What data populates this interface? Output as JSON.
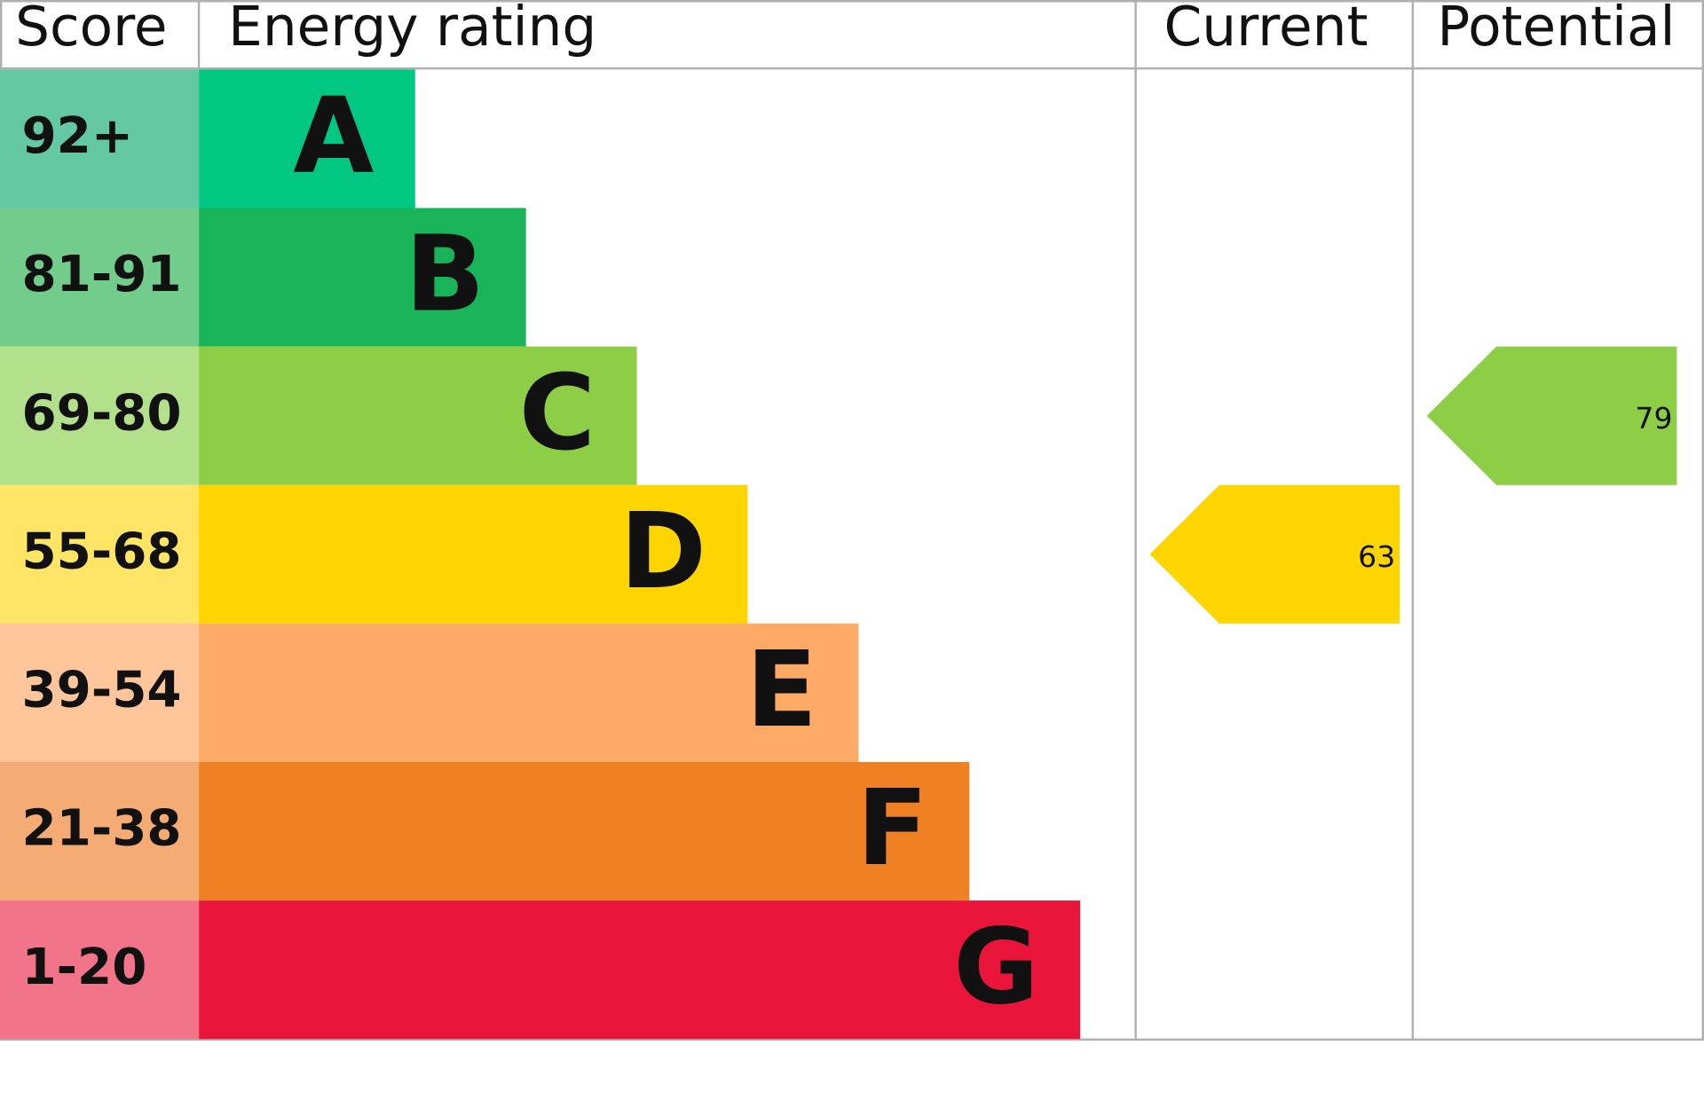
{
  "header": {
    "score": "Score",
    "rating": "Energy rating",
    "current": "Current",
    "potential": "Potential"
  },
  "bands": [
    {
      "score": "92+",
      "letter": "A",
      "color": "#00c781",
      "score_color": "#64c8a4"
    },
    {
      "score": "81-91",
      "letter": "B",
      "color": "#19b459",
      "score_color": "#72cc8c"
    },
    {
      "score": "69-80",
      "letter": "C",
      "color": "#8dce46",
      "score_color": "#b3e08a"
    },
    {
      "score": "55-68",
      "letter": "D",
      "color": "#ffd500",
      "score_color": "#ffe566"
    },
    {
      "score": "39-54",
      "letter": "E",
      "color": "#fcaa65",
      "score_color": "#ffc69c"
    },
    {
      "score": "21-38",
      "letter": "F",
      "color": "#ef8023",
      "score_color": "#f4ac74"
    },
    {
      "score": "1-20",
      "letter": "G",
      "color": "#e9153b",
      "score_color": "#f27489"
    }
  ],
  "current": 63,
  "potential": 79
}
